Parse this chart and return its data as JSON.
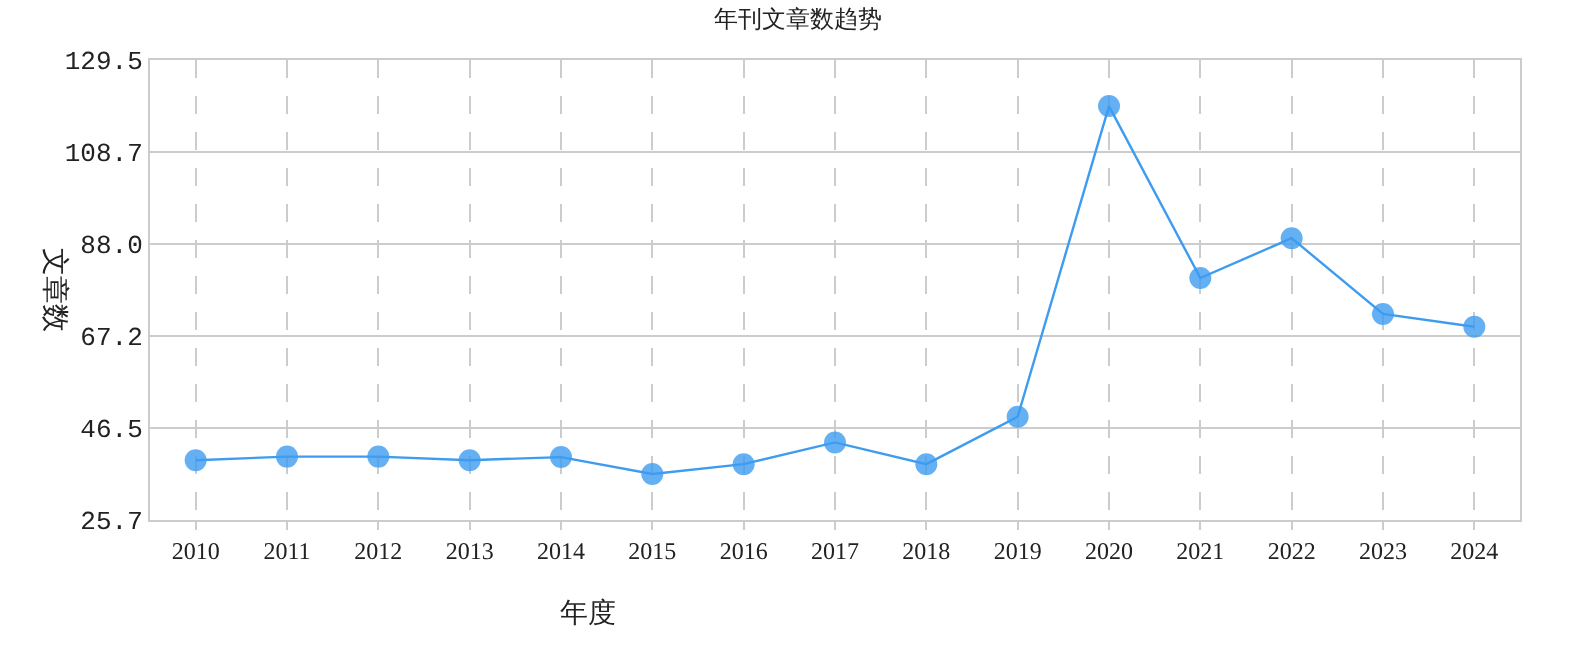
{
  "chart_data": {
    "type": "line",
    "title": "年刊文章数趋势",
    "xlabel": "年度",
    "ylabel": "文章数",
    "categories": [
      "2010",
      "2011",
      "2012",
      "2013",
      "2014",
      "2015",
      "2016",
      "2017",
      "2018",
      "2019",
      "2020",
      "2021",
      "2022",
      "2023",
      "2024"
    ],
    "series": [
      {
        "color": "#3d9cf0",
        "values": [
          39.2,
          40.0,
          40.0,
          39.2,
          39.9,
          36.1,
          38.3,
          43.2,
          38.3,
          49.0,
          119.1,
          80.3,
          89.3,
          72.2,
          69.3
        ]
      }
    ],
    "ylim": [
      25.7,
      129.5
    ],
    "yticks": [
      {
        "value": 25.7,
        "label": "25.7"
      },
      {
        "value": 46.5,
        "label": "46.5"
      },
      {
        "value": 67.2,
        "label": "67.2"
      },
      {
        "value": 88.0,
        "label": "88.0"
      },
      {
        "value": 108.7,
        "label": "108.7"
      },
      {
        "value": 129.5,
        "label": "129.5"
      }
    ],
    "grid": true,
    "legend": false,
    "marker": "circle",
    "line_style": "solid"
  }
}
